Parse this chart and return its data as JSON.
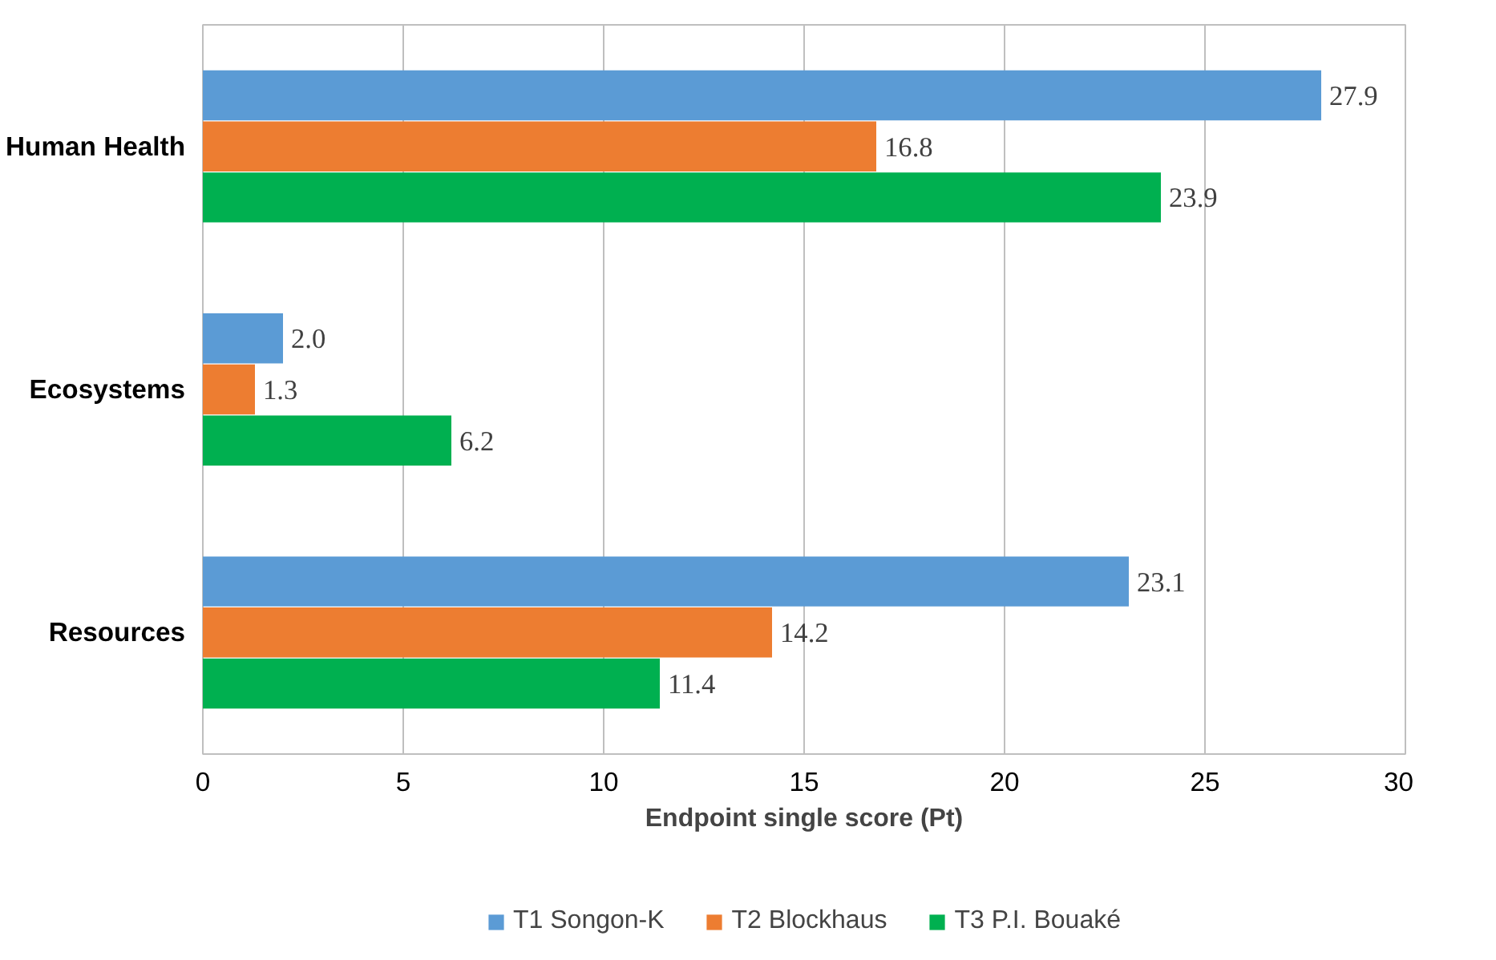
{
  "chart_data": {
    "type": "bar",
    "orientation": "horizontal",
    "categories": [
      "Human Health",
      "Ecosystems",
      "Resources"
    ],
    "series": [
      {
        "name": "T1 Songon-K",
        "color": "#5b9bd5",
        "values": [
          27.9,
          2.0,
          23.1
        ],
        "value_labels": [
          "27.9",
          "2.0",
          "23.1"
        ]
      },
      {
        "name": "T2 Blockhaus",
        "color": "#ed7d31",
        "values": [
          16.8,
          1.3,
          14.2
        ],
        "value_labels": [
          "16.8",
          "1.3",
          "14.2"
        ]
      },
      {
        "name": "T3 P.I. Bouaké",
        "color": "#00b050",
        "values": [
          23.9,
          6.2,
          11.4
        ],
        "value_labels": [
          "23.9",
          "6.2",
          "11.4"
        ]
      }
    ],
    "xlabel": "Endpoint single score (Pt)",
    "xlim": [
      0,
      30
    ],
    "xticks": [
      0,
      5,
      10,
      15,
      20,
      25,
      30
    ],
    "grid": "x",
    "legend": "bottom"
  }
}
